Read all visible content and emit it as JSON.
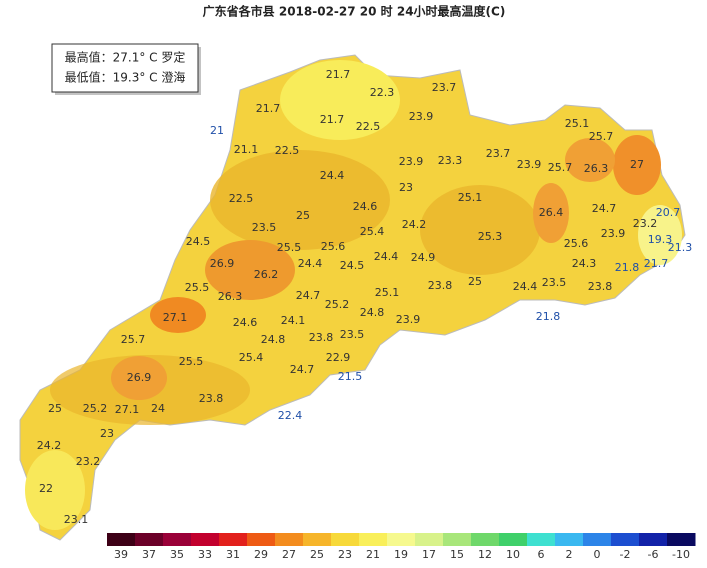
{
  "header": {
    "title": "广东省各市县 2018-02-27 20 时 24小时最高温度(C)"
  },
  "summary": [
    "最高值：27.1° C 罗定",
    "最低值：19.3° C 澄海"
  ],
  "county_values": [
    21.7,
    22.3,
    23.7,
    21.7,
    21.7,
    22.5,
    23.9,
    25.1,
    25.7,
    21.1,
    22.5,
    23.9,
    23.3,
    23.7,
    23.9,
    25.7,
    26.3,
    27,
    24.4,
    23,
    25.1,
    22.5,
    24.6,
    26.4,
    24.7,
    23.2,
    25,
    25.4,
    24.2,
    23.5,
    25.3,
    23.9,
    25.6,
    24.5,
    25.5,
    25.6,
    24.4,
    24.9,
    24.5,
    24.4,
    26.9,
    26.2,
    24.3,
    25.5,
    26.3,
    24.7,
    25.1,
    23.8,
    25,
    24.4,
    23.5,
    23.8,
    27.1,
    25.2,
    24.6,
    24.1,
    24.8,
    23.9,
    23.5,
    25.7,
    24.8,
    23.8,
    22.9,
    25.5,
    25.4,
    26.9,
    24.7,
    23.8,
    25,
    25.2,
    27.1,
    24,
    23,
    24.2,
    23.2,
    22,
    23.1
  ],
  "coastal_values": [
    21,
    20.7,
    19.3,
    21.3,
    21.8,
    21.7,
    21.8,
    21.5,
    22.4
  ],
  "colorbar": {
    "labels": [
      39,
      37,
      35,
      33,
      31,
      29,
      27,
      25,
      23,
      21,
      19,
      17,
      15,
      12,
      10,
      6,
      2,
      0,
      -2,
      -6,
      -10
    ],
    "colors": [
      "#3d0016",
      "#6b0028",
      "#9a0038",
      "#c2002e",
      "#e2201c",
      "#ee5a14",
      "#f38c1e",
      "#f6b52a",
      "#f7d93a",
      "#f9ef5a",
      "#f6f98e",
      "#d8f28a",
      "#a8e67a",
      "#6fd86a",
      "#3fd06a",
      "#3ee0d0",
      "#3ab8f0",
      "#2c84e8",
      "#1c4ed0",
      "#1222a8",
      "#0a0a60"
    ]
  }
}
